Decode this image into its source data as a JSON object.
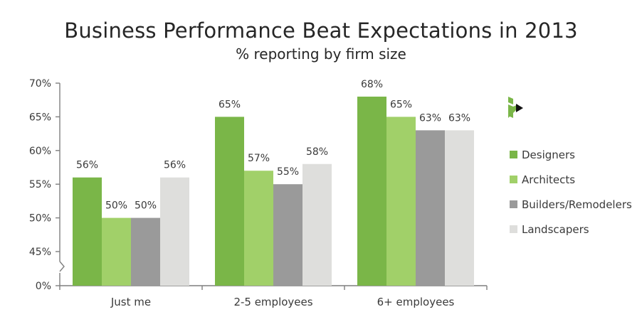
{
  "chart_data": {
    "type": "bar",
    "title": "Business Performance Beat Expectations in 2013",
    "subtitle": "% reporting by firm size",
    "categories": [
      "Just me",
      "2-5 employees",
      "6+ employees"
    ],
    "series": [
      {
        "name": "Designers",
        "color": "#7ab648",
        "values": [
          56,
          65,
          68
        ]
      },
      {
        "name": "Architects",
        "color": "#a1d069",
        "values": [
          50,
          57,
          65
        ]
      },
      {
        "name": "Builders/Remodelers",
        "color": "#9a9a9a",
        "values": [
          50,
          55,
          63
        ]
      },
      {
        "name": "Landscapers",
        "color": "#dededc",
        "values": [
          56,
          58,
          63
        ]
      }
    ],
    "yticks": [
      {
        "label": "0%",
        "value": 0
      },
      {
        "label": "45%",
        "value": 45
      },
      {
        "label": "50%",
        "value": 50
      },
      {
        "label": "55%",
        "value": 55
      },
      {
        "label": "60%",
        "value": 60
      },
      {
        "label": "65%",
        "value": 65
      },
      {
        "label": "70%",
        "value": 70
      }
    ],
    "axis_break": true,
    "ylim": [
      40,
      70
    ],
    "xlabel": "",
    "ylabel": "",
    "legend_position": "right",
    "grid": false,
    "logo": "houzz-logo",
    "value_suffix": "%"
  }
}
